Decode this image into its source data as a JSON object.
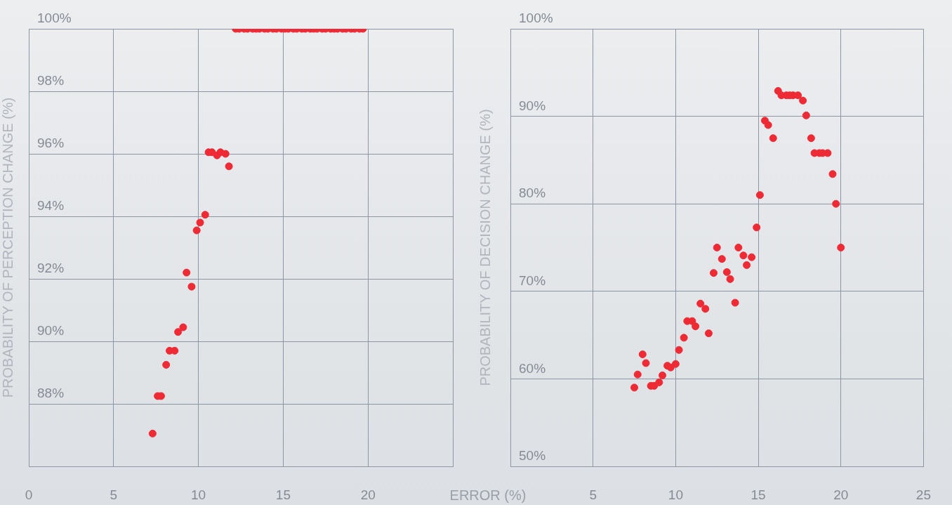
{
  "chart_data": [
    {
      "type": "scatter",
      "ylabel": "PROBABILITY OF PERCEPTION CHANGE (%)",
      "xlabel": "ERROR (%)",
      "color": "#ee2a35",
      "marker": "circle",
      "grid": true,
      "legend": false,
      "x": [
        7.3,
        7.6,
        7.8,
        8.1,
        8.3,
        8.6,
        8.8,
        9.1,
        9.3,
        9.6,
        9.9,
        10.1,
        10.4,
        10.6,
        10.8,
        11.1,
        11.3,
        11.6,
        11.8,
        12.2,
        12.4,
        12.7,
        12.9,
        13.2,
        13.4,
        13.6,
        13.9,
        14.1,
        14.4,
        14.6,
        14.9,
        15.1,
        15.3,
        15.6,
        15.8,
        16.1,
        16.3,
        16.6,
        16.8,
        17.0,
        17.3,
        17.5,
        17.8,
        18.0,
        18.2,
        18.5,
        18.7,
        19.0,
        19.2,
        19.5,
        19.7
      ],
      "values": [
        87.05,
        88.25,
        88.25,
        89.25,
        89.7,
        89.7,
        90.3,
        90.45,
        92.2,
        91.75,
        93.55,
        93.8,
        94.05,
        96.05,
        96.05,
        95.95,
        96.05,
        96.0,
        95.6,
        100,
        100,
        100,
        100,
        100,
        100,
        100,
        100,
        100,
        100,
        100,
        100,
        100,
        100,
        100,
        100,
        100,
        100,
        100,
        100,
        100,
        100,
        100,
        100,
        100,
        100,
        100,
        100,
        100,
        100,
        100,
        100
      ],
      "xlim": [
        0,
        25
      ],
      "xticks": [
        0,
        5,
        10,
        15,
        20,
        {
          "value": 25,
          "label": null
        }
      ],
      "ylim": [
        86,
        100
      ],
      "yticks": [
        {
          "value": 86,
          "label": null
        },
        {
          "value": 88,
          "label": "88%"
        },
        {
          "value": 90,
          "label": "90%"
        },
        {
          "value": 92,
          "label": "92%"
        },
        {
          "value": 94,
          "label": "94%"
        },
        {
          "value": 96,
          "label": "96%"
        },
        {
          "value": 98,
          "label": "98%"
        },
        {
          "value": 100,
          "label": "100%"
        }
      ]
    },
    {
      "type": "scatter",
      "ylabel": "PROBABILITY OF DECISION CHANGE (%)",
      "color": "#ee2a35",
      "marker": "circle",
      "grid": true,
      "legend": false,
      "x": [
        7.5,
        7.7,
        8.0,
        8.2,
        8.5,
        8.7,
        9.0,
        9.2,
        9.5,
        9.7,
        10.0,
        10.2,
        10.5,
        10.7,
        11.0,
        11.2,
        11.5,
        11.8,
        12.0,
        12.3,
        12.5,
        12.8,
        13.1,
        13.3,
        13.6,
        13.8,
        14.1,
        14.3,
        14.6,
        14.9,
        15.1,
        15.4,
        15.6,
        15.9,
        16.2,
        16.4,
        16.7,
        16.9,
        17.1,
        17.4,
        17.7,
        17.9,
        18.2,
        18.4,
        18.7,
        18.9,
        19.2,
        19.5,
        19.7,
        20.0
      ],
      "values": [
        59.0,
        60.5,
        62.8,
        61.8,
        59.2,
        59.2,
        59.6,
        60.4,
        61.5,
        61.3,
        61.7,
        63.3,
        64.7,
        66.6,
        66.6,
        66.0,
        68.6,
        68.0,
        65.2,
        72.1,
        75.0,
        73.7,
        72.2,
        71.4,
        68.7,
        75.0,
        74.1,
        73.0,
        73.9,
        77.3,
        81.0,
        89.5,
        89.0,
        87.5,
        92.9,
        92.4,
        92.4,
        92.4,
        92.4,
        92.4,
        91.8,
        90.1,
        87.5,
        85.8,
        85.8,
        85.8,
        85.8,
        83.4,
        80.0,
        75.0
      ],
      "xlim": [
        0,
        25
      ],
      "xticks": [
        5,
        10,
        15,
        20,
        25
      ],
      "ylim": [
        50,
        100
      ],
      "yticks": [
        {
          "value": 50,
          "label": "50%"
        },
        {
          "value": 60,
          "label": "60%"
        },
        {
          "value": 70,
          "label": "70%"
        },
        {
          "value": 80,
          "label": "80%"
        },
        {
          "value": 90,
          "label": "90%"
        },
        {
          "value": 100,
          "label": "100%"
        }
      ]
    }
  ]
}
